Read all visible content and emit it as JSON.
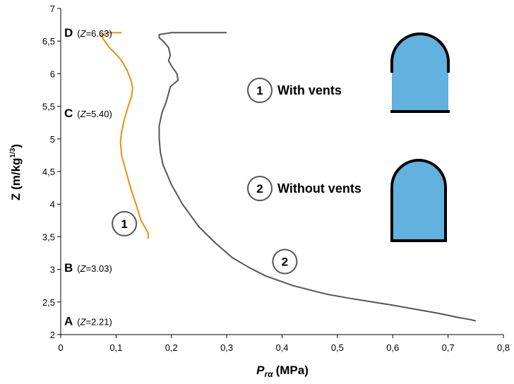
{
  "chart_data": {
    "type": "line",
    "xlabel": {
      "main": "P",
      "sub": "rα",
      "unit": "(MPa)"
    },
    "ylabel": {
      "main": "Z (m/kg",
      "sup": "1/3",
      "end": ")"
    },
    "xlim": [
      0,
      0.8
    ],
    "ylim": [
      2,
      7
    ],
    "x_ticks": [
      "0",
      "0,1",
      "0,2",
      "0,3",
      "0,4",
      "0,5",
      "0,6",
      "0,7",
      "0,8"
    ],
    "x_tick_values": [
      0,
      0.1,
      0.2,
      0.3,
      0.4,
      0.5,
      0.6,
      0.7,
      0.8
    ],
    "y_ticks": [
      "2",
      "2,5",
      "3",
      "3,5",
      "4",
      "4,5",
      "5",
      "5,5",
      "6",
      "6,5",
      "7"
    ],
    "y_tick_values": [
      2,
      2.5,
      3,
      3.5,
      4,
      4.5,
      5,
      5.5,
      6,
      6.5,
      7
    ],
    "colors": {
      "series1": "#E8900C",
      "series2": "#555555",
      "structure_fill": "#62B1DE",
      "structure_outline": "#000000"
    },
    "series": [
      {
        "label_num": "1",
        "label_text": "With vents",
        "points": [
          [
            0.158,
            3.47
          ],
          [
            0.158,
            3.56
          ],
          [
            0.154,
            3.62
          ],
          [
            0.145,
            3.75
          ],
          [
            0.138,
            3.95
          ],
          [
            0.128,
            4.2
          ],
          [
            0.118,
            4.5
          ],
          [
            0.11,
            4.75
          ],
          [
            0.108,
            4.95
          ],
          [
            0.11,
            5.1
          ],
          [
            0.115,
            5.3
          ],
          [
            0.122,
            5.5
          ],
          [
            0.128,
            5.65
          ],
          [
            0.13,
            5.78
          ],
          [
            0.127,
            5.9
          ],
          [
            0.12,
            6.05
          ],
          [
            0.11,
            6.2
          ],
          [
            0.1,
            6.3
          ],
          [
            0.088,
            6.4
          ],
          [
            0.078,
            6.52
          ],
          [
            0.073,
            6.59
          ],
          [
            0.085,
            6.63
          ],
          [
            0.11,
            6.63
          ]
        ]
      },
      {
        "label_num": "2",
        "label_text": "Without vents",
        "points": [
          [
            0.75,
            2.21
          ],
          [
            0.74,
            2.23
          ],
          [
            0.72,
            2.26
          ],
          [
            0.68,
            2.33
          ],
          [
            0.6,
            2.45
          ],
          [
            0.52,
            2.56
          ],
          [
            0.48,
            2.62
          ],
          [
            0.42,
            2.75
          ],
          [
            0.37,
            2.9
          ],
          [
            0.34,
            3.03
          ],
          [
            0.31,
            3.18
          ],
          [
            0.28,
            3.4
          ],
          [
            0.25,
            3.65
          ],
          [
            0.22,
            4.0
          ],
          [
            0.2,
            4.3
          ],
          [
            0.185,
            4.6
          ],
          [
            0.18,
            4.8
          ],
          [
            0.178,
            5.0
          ],
          [
            0.178,
            5.2
          ],
          [
            0.183,
            5.4
          ],
          [
            0.19,
            5.55
          ],
          [
            0.195,
            5.7
          ],
          [
            0.198,
            5.8
          ],
          [
            0.212,
            5.9
          ],
          [
            0.21,
            6.0
          ],
          [
            0.2,
            6.12
          ],
          [
            0.195,
            6.2
          ],
          [
            0.198,
            6.28
          ],
          [
            0.195,
            6.4
          ],
          [
            0.185,
            6.5
          ],
          [
            0.178,
            6.55
          ],
          [
            0.178,
            6.6
          ],
          [
            0.2,
            6.63
          ],
          [
            0.3,
            6.63
          ]
        ]
      }
    ],
    "points_of_interest": [
      {
        "letter": "D",
        "z_label": "Z",
        "z_value": "=6.63)",
        "z_open": "(",
        "y": 6.63
      },
      {
        "letter": "C",
        "z_label": "Z",
        "z_value": "=5.40)",
        "z_open": "(",
        "y": 5.4
      },
      {
        "letter": "B",
        "z_label": "Z",
        "z_value": "=3.03)",
        "z_open": "(",
        "y": 3.03
      },
      {
        "letter": "A",
        "z_label": "Z",
        "z_value": "=2.21)",
        "z_open": "(",
        "y": 2.21
      }
    ],
    "line_labels": [
      {
        "num": "1",
        "x": 0.115,
        "y": 3.7
      },
      {
        "num": "2",
        "x": 0.405,
        "y": 3.12
      }
    ]
  }
}
